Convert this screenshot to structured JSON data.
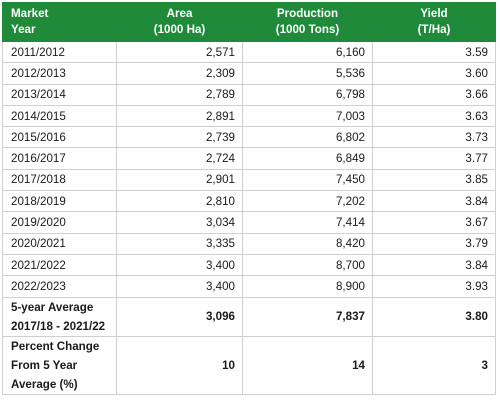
{
  "header": {
    "col1": [
      "Market",
      "Year"
    ],
    "col2": [
      "Area",
      "(1000 Ha)"
    ],
    "col3": [
      "Production",
      "(1000 Tons)"
    ],
    "col4": [
      "Yield",
      "(T/Ha)"
    ]
  },
  "rows": [
    {
      "year": "2011/2012",
      "area": "2,571",
      "production": "6,160",
      "yield": "3.59"
    },
    {
      "year": "2012/2013",
      "area": "2,309",
      "production": "5,536",
      "yield": "3.60"
    },
    {
      "year": "2013/2014",
      "area": "2,789",
      "production": "6,798",
      "yield": "3.66"
    },
    {
      "year": "2014/2015",
      "area": "2,891",
      "production": "7,003",
      "yield": "3.63"
    },
    {
      "year": "2015/2016",
      "area": "2,739",
      "production": "6,802",
      "yield": "3.73"
    },
    {
      "year": "2016/2017",
      "area": "2,724",
      "production": "6,849",
      "yield": "3.77"
    },
    {
      "year": "2017/2018",
      "area": "2,901",
      "production": "7,450",
      "yield": "3.85"
    },
    {
      "year": "2018/2019",
      "area": "2,810",
      "production": "7,202",
      "yield": "3.84"
    },
    {
      "year": "2019/2020",
      "area": "3,034",
      "production": "7,414",
      "yield": "3.67"
    },
    {
      "year": "2020/2021",
      "area": "3,335",
      "production": "8,420",
      "yield": "3.79"
    },
    {
      "year": "2021/2022",
      "area": "3,400",
      "production": "8,700",
      "yield": "3.84"
    },
    {
      "year": "2022/2023",
      "area": "3,400",
      "production": "8,900",
      "yield": "3.93"
    }
  ],
  "average": {
    "label": [
      "5-year Average",
      "2017/18 - 2021/22"
    ],
    "area": "3,096",
    "production": "7,837",
    "yield": "3.80"
  },
  "percent_change": {
    "label": [
      "Percent Change",
      "From 5 Year",
      "Average (%)"
    ],
    "area": "10",
    "production": "14",
    "yield": "3"
  },
  "colors": {
    "header_bg": "#1e8a3a",
    "header_text": "#ffffff",
    "grid": "#cfcfcf"
  }
}
